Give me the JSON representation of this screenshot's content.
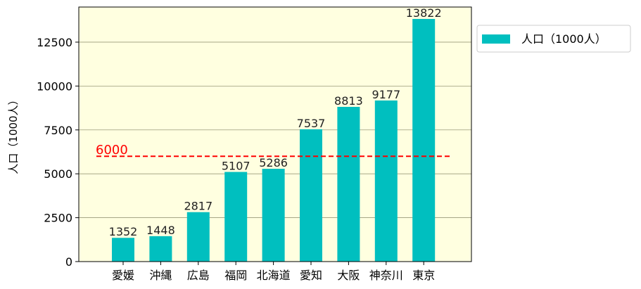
{
  "chart_data": {
    "type": "bar",
    "categories": [
      "愛媛",
      "沖縄",
      "広島",
      "福岡",
      "北海道",
      "愛知",
      "大阪",
      "神奈川",
      "東京"
    ],
    "series": [
      {
        "name": "人口（1000人）",
        "values": [
          1352,
          1448,
          2817,
          5107,
          5286,
          7537,
          8813,
          9177,
          13822
        ]
      }
    ],
    "ylabel": "人口（1000人）",
    "ylim": [
      0,
      14500
    ],
    "yticks": [
      0,
      2500,
      5000,
      7500,
      10000,
      12500
    ],
    "grid": "y",
    "legend": "outside-top-right",
    "reference_line": {
      "value": 6000,
      "label": "6000",
      "style": "dashed",
      "color": "#ff0000"
    },
    "colors": {
      "bar": "#00bfbf",
      "plot_background": "#ffffe0",
      "gridline": "#9a9a7a"
    }
  }
}
